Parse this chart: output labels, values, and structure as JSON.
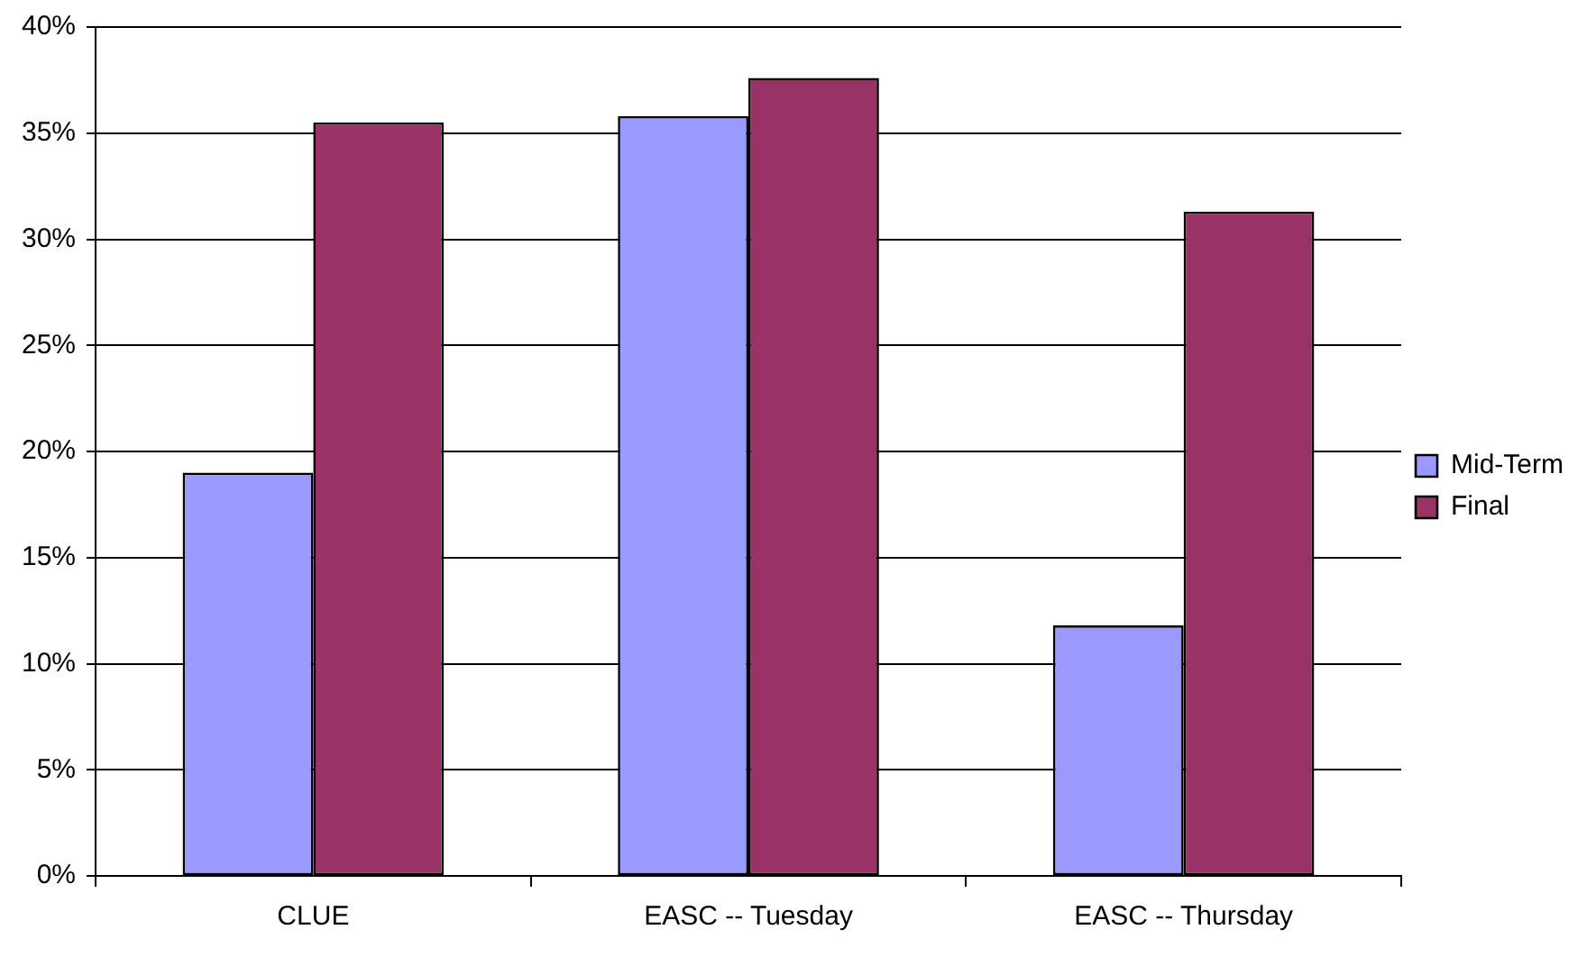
{
  "chart_data": {
    "type": "bar",
    "categories": [
      "CLUE",
      "EASC -- Tuesday",
      "EASC -- Thursday"
    ],
    "series": [
      {
        "name": "Mid-Term",
        "color": "#9999ff",
        "values": [
          19.0,
          35.8,
          11.8
        ]
      },
      {
        "name": "Final",
        "color": "#993366",
        "values": [
          35.5,
          37.6,
          31.3
        ]
      }
    ],
    "ylim": [
      0,
      40
    ],
    "yticks": [
      {
        "value": 0,
        "label": "0%"
      },
      {
        "value": 5,
        "label": "5%"
      },
      {
        "value": 10,
        "label": "10%"
      },
      {
        "value": 15,
        "label": "15%"
      },
      {
        "value": 20,
        "label": "20%"
      },
      {
        "value": 25,
        "label": "25%"
      },
      {
        "value": 30,
        "label": "30%"
      },
      {
        "value": 35,
        "label": "35%"
      },
      {
        "value": 40,
        "label": "40%"
      }
    ],
    "grid": "y",
    "legend": "right"
  }
}
